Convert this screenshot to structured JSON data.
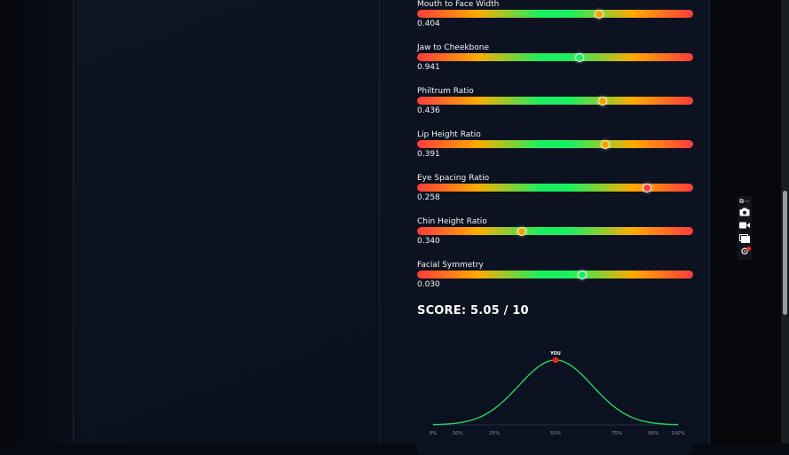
{
  "metrics": [
    {
      "label": "Mouth to Face Width",
      "value": "0.404",
      "position": 0.66,
      "marker_color": "#f5a300"
    },
    {
      "label": "Jaw to Cheekbone",
      "value": "0.941",
      "position": 0.587,
      "marker_color": "#19f060"
    },
    {
      "label": "Philtrum Ratio",
      "value": "0.436",
      "position": 0.672,
      "marker_color": "#f5a300"
    },
    {
      "label": "Lip Height Ratio",
      "value": "0.391",
      "position": 0.682,
      "marker_color": "#f5a300"
    },
    {
      "label": "Eye Spacing Ratio",
      "value": "0.258",
      "position": 0.833,
      "marker_color": "#ff4040"
    },
    {
      "label": "Chin Height Ratio",
      "value": "0.340",
      "position": 0.379,
      "marker_color": "#f5a300"
    },
    {
      "label": "Facial Symmetry",
      "value": "0.030",
      "position": 0.598,
      "marker_color": "#19f060"
    }
  ],
  "score": {
    "text": "SCORE: 5.05 / 10"
  },
  "chart_data": {
    "type": "line",
    "description_curve": "normal distribution",
    "x_ticks": [
      {
        "label": "0%",
        "value": 0
      },
      {
        "label": "10%",
        "value": 10
      },
      {
        "label": "25%",
        "value": 25
      },
      {
        "label": "50%",
        "value": 50
      },
      {
        "label": "75%",
        "value": 75
      },
      {
        "label": "90%",
        "value": 90
      },
      {
        "label": "100%",
        "value": 100
      }
    ],
    "marker": {
      "label": "YOU",
      "percentile": 50,
      "color": "#ff1a1a"
    },
    "line_color": "#1ed760",
    "grid": false
  },
  "toolbar": {
    "items": [
      "extensions-icon",
      "camera-icon",
      "video-icon",
      "window-icon",
      "settings-icon"
    ],
    "badge_color": "#ff2b2b"
  }
}
